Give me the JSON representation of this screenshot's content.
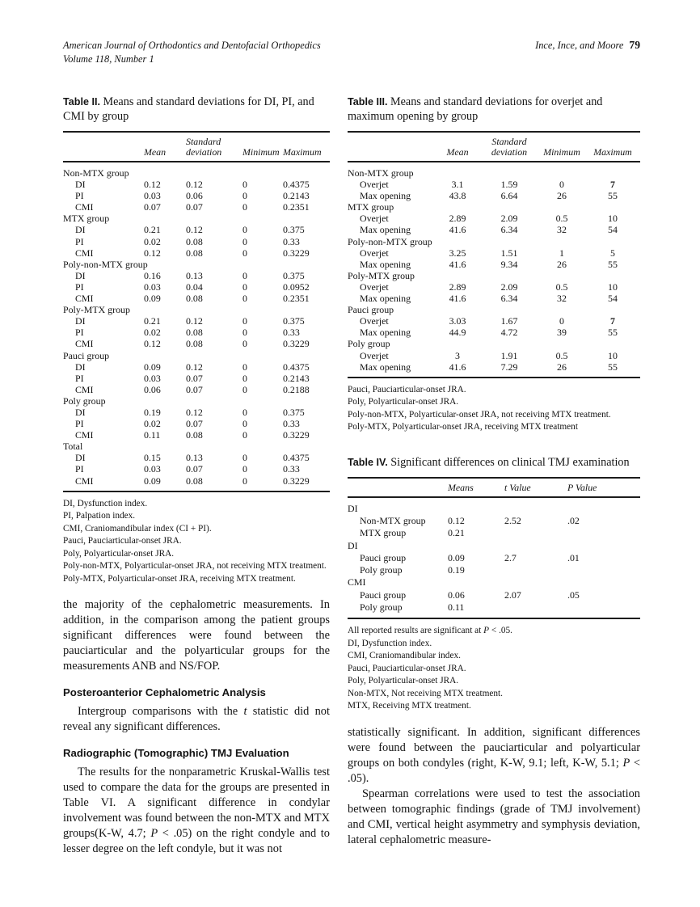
{
  "header": {
    "journal": "American Journal of Orthodontics and Dentofacial Orthopedics",
    "volume": "Volume 118, Number 1",
    "authors": "Ince, Ince, and Moore",
    "page_number": "79"
  },
  "table2": {
    "label": "Table II.",
    "caption": "Means and standard deviations for DI, PI, and CMI by group",
    "col_headers": [
      "Mean",
      "Standard deviation",
      "Minimum",
      "Maximum"
    ],
    "groups": [
      {
        "name": "Non-MTX group",
        "rows": [
          [
            "DI",
            "0.12",
            "0.12",
            "0",
            "0.4375"
          ],
          [
            "PI",
            "0.03",
            "0.06",
            "0",
            "0.2143"
          ],
          [
            "CMI",
            "0.07",
            "0.07",
            "0",
            "0.2351"
          ]
        ]
      },
      {
        "name": "MTX group",
        "rows": [
          [
            "DI",
            "0.21",
            "0.12",
            "0",
            "0.375"
          ],
          [
            "PI",
            "0.02",
            "0.08",
            "0",
            "0.33"
          ],
          [
            "CMI",
            "0.12",
            "0.08",
            "0",
            "0.3229"
          ]
        ]
      },
      {
        "name": "Poly-non-MTX group",
        "rows": [
          [
            "DI",
            "0.16",
            "0.13",
            "0",
            "0.375"
          ],
          [
            "PI",
            "0.03",
            "0.04",
            "0",
            "0.0952"
          ],
          [
            "CMI",
            "0.09",
            "0.08",
            "0",
            "0.2351"
          ]
        ]
      },
      {
        "name": "Poly-MTX group",
        "rows": [
          [
            "DI",
            "0.21",
            "0.12",
            "0",
            "0.375"
          ],
          [
            "PI",
            "0.02",
            "0.08",
            "0",
            "0.33"
          ],
          [
            "CMI",
            "0.12",
            "0.08",
            "0",
            "0.3229"
          ]
        ]
      },
      {
        "name": "Pauci group",
        "rows": [
          [
            "DI",
            "0.09",
            "0.12",
            "0",
            "0.4375"
          ],
          [
            "PI",
            "0.03",
            "0.07",
            "0",
            "0.2143"
          ],
          [
            "CMI",
            "0.06",
            "0.07",
            "0",
            "0.2188"
          ]
        ]
      },
      {
        "name": "Poly group",
        "rows": [
          [
            "DI",
            "0.19",
            "0.12",
            "0",
            "0.375"
          ],
          [
            "PI",
            "0.02",
            "0.07",
            "0",
            "0.33"
          ],
          [
            "CMI",
            "0.11",
            "0.08",
            "0",
            "0.3229"
          ]
        ]
      },
      {
        "name": "Total",
        "rows": [
          [
            "DI",
            "0.15",
            "0.13",
            "0",
            "0.4375"
          ],
          [
            "PI",
            "0.03",
            "0.07",
            "0",
            "0.33"
          ],
          [
            "CMI",
            "0.09",
            "0.08",
            "0",
            "0.3229"
          ]
        ]
      }
    ],
    "footnotes": [
      "DI, Dysfunction index.",
      "PI, Palpation index.",
      "CMI, Craniomandibular index (CI + PI).",
      "Pauci, Pauciarticular-onset JRA.",
      "Poly, Polyarticular-onset JRA.",
      "Poly-non-MTX, Polyarticular-onset JRA, not receiving MTX treatment.",
      "Poly-MTX, Polyarticular-onset JRA, receiving MTX treatment."
    ]
  },
  "table3": {
    "label": "Table III.",
    "caption": "Means and standard deviations for overjet and maximum opening by group",
    "col_headers": [
      "Mean",
      "Standard deviation",
      "Minimum",
      "Maximum"
    ],
    "groups": [
      {
        "name": "Non-MTX group",
        "rows": [
          [
            "Overjet",
            "3.1",
            "1.59",
            "0",
            "**7**"
          ],
          [
            "Max opening",
            "43.8",
            "6.64",
            "26",
            "55"
          ]
        ]
      },
      {
        "name": "MTX group",
        "rows": [
          [
            "Overjet",
            "2.89",
            "2.09",
            "0.5",
            "10"
          ],
          [
            "Max opening",
            "41.6",
            "6.34",
            "32",
            "54"
          ]
        ]
      },
      {
        "name": "Poly-non-MTX group",
        "rows": [
          [
            "Overjet",
            "3.25",
            "1.51",
            "1",
            "5"
          ],
          [
            "Max opening",
            "41.6",
            "9.34",
            "26",
            "55"
          ]
        ]
      },
      {
        "name": "Poly-MTX group",
        "rows": [
          [
            "Overjet",
            "2.89",
            "2.09",
            "0.5",
            "10"
          ],
          [
            "Max opening",
            "41.6",
            "6.34",
            "32",
            "54"
          ]
        ]
      },
      {
        "name": "Pauci group",
        "rows": [
          [
            "Overjet",
            "3.03",
            "1.67",
            "0",
            "**7**"
          ],
          [
            "Max opening",
            "44.9",
            "4.72",
            "39",
            "55"
          ]
        ]
      },
      {
        "name": "Poly group",
        "rows": [
          [
            "Overjet",
            "3",
            "1.91",
            "0.5",
            "10"
          ],
          [
            "Max opening",
            "41.6",
            "7.29",
            "26",
            "55"
          ]
        ]
      }
    ],
    "footnotes": [
      "Pauci, Pauciarticular-onset JRA.",
      "Poly, Polyarticular-onset JRA.",
      "Poly-non-MTX, Polyarticular-onset JRA, not receiving MTX treatment.",
      "Poly-MTX, Polyarticular-onset JRA, receiving MTX treatment"
    ]
  },
  "table4": {
    "label": "Table IV.",
    "caption": "Significant differences on clinical TMJ examination",
    "col_headers": [
      "Means",
      "t Value",
      "P Value"
    ],
    "sections": [
      {
        "name": "DI",
        "rows": [
          [
            "Non-MTX group",
            "0.12",
            "2.52",
            ".02"
          ],
          [
            "MTX group",
            "0.21",
            "",
            ""
          ]
        ]
      },
      {
        "name": "DI",
        "rows": [
          [
            "Pauci group",
            "0.09",
            "2.7",
            ".01"
          ],
          [
            "Poly group",
            "0.19",
            "",
            ""
          ]
        ]
      },
      {
        "name": "CMI",
        "rows": [
          [
            "Pauci group",
            "0.06",
            "2.07",
            ".05"
          ],
          [
            "Poly group",
            "0.11",
            "",
            ""
          ]
        ]
      }
    ],
    "footnotes": [
      "All reported results are significant at *P* < .05.",
      "DI, Dysfunction index.",
      "CMI, Craniomandibular index.",
      "Pauci, Pauciarticular-onset JRA.",
      "Poly, Polyarticular-onset JRA.",
      "Non-MTX, Not receiving MTX treatment.",
      "MTX, Receiving MTX treatment."
    ]
  },
  "left_column": {
    "para1": "the majority of the cephalometric measurements. In addition, in the comparison among the patient groups significant differences were found between the pauciarticular and the polyarticular groups for the measurements ANB and NS/FOP.",
    "heading1": "Posteroanterior Cephalometric Analysis",
    "para2": "Intergroup comparisons with the *t* statistic did not reveal any significant differences.",
    "heading2": "Radiographic (Tomographic) TMJ Evaluation",
    "para3": "The results for the nonparametric Kruskal-Wallis test used to compare the data for the groups are presented in Table VI. A significant difference in condylar involvement was found between the non-MTX and MTX groups(K-W, 4.7; *P* < .05) on the right condyle and to lesser degree on the left condyle, but it was not"
  },
  "right_column": {
    "para1": "statistically significant. In addition, significant differences were found between the pauciarticular and polyarticular groups on both condyles (right, K-W, 9.1; left, K-W, 5.1; *P* < .05).",
    "para2": "Spearman correlations were used to test the association between tomographic findings (grade of TMJ involvement) and CMI, vertical height asymmetry and symphysis deviation, lateral cephalometric measure-"
  }
}
